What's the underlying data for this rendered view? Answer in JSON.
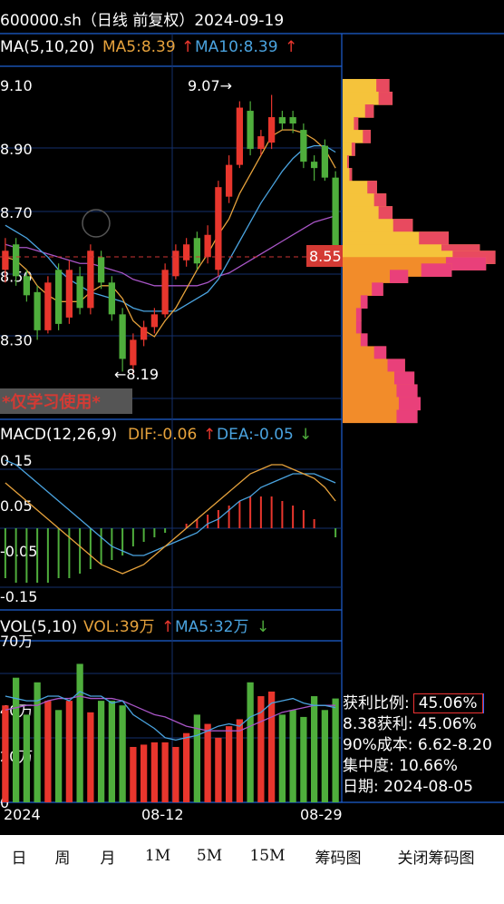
{
  "header": {
    "title": "600000.sh（日线 前复权）2024-09-19",
    "ma_label": "MA(5,10,20)",
    "ma5": "MA5:8.39",
    "ma10": "MA10:8.39",
    "arrow_up": "↑",
    "arrow_down": "↓"
  },
  "price": {
    "ticks": [
      "9.10",
      "8.90",
      "8.70",
      "8.50",
      "8.30",
      "8.10"
    ],
    "high_label": "9.07→",
    "low_label": "←8.19",
    "last_price": "8.55",
    "watermark": "*仅学习使用*"
  },
  "macd": {
    "label": "MACD(12,26,9)",
    "dif": "DIF:-0.06",
    "dea": "DEA:-0.05",
    "ticks": [
      "0.15",
      "0.05",
      "-0.05",
      "-0.15"
    ]
  },
  "vol": {
    "label": "VOL(5,10)",
    "vol": "VOL:39万",
    "ma5": "MA5:32万",
    "ticks": [
      "70万",
      "40万",
      "20万",
      "0"
    ]
  },
  "xaxis": {
    "labels": [
      "2024",
      "08-12",
      "08-29"
    ]
  },
  "chips": {
    "profit_ratio_label": "获利比例:",
    "profit_ratio": "45.06%",
    "profit_at": "8.38获利: 45.06%",
    "cost90": "90%成本: 6.62-8.20",
    "concentration": "集中度: 10.66%",
    "date": "日期: 2024-08-05"
  },
  "toolbar": {
    "day": "日",
    "week": "周",
    "month": "月",
    "m1": "1M",
    "m5": "5M",
    "m15": "15M",
    "chips": "筹码图",
    "close_chips": "关闭筹码图"
  },
  "colors": {
    "up": "#e8362d",
    "down": "#4fae3c",
    "ma5": "#e6a23c",
    "ma10": "#4aa3df",
    "ma20": "#a855c6",
    "axis": "#1e5fd1"
  },
  "chart_data": {
    "type": "candlestick",
    "candles": [
      {
        "o": 8.52,
        "c": 8.58,
        "h": 8.62,
        "l": 8.48
      },
      {
        "o": 8.6,
        "c": 8.5,
        "h": 8.62,
        "l": 8.47
      },
      {
        "o": 8.5,
        "c": 8.44,
        "h": 8.52,
        "l": 8.42
      },
      {
        "o": 8.45,
        "c": 8.33,
        "h": 8.47,
        "l": 8.3
      },
      {
        "o": 8.33,
        "c": 8.48,
        "h": 8.5,
        "l": 8.32
      },
      {
        "o": 8.52,
        "c": 8.35,
        "h": 8.54,
        "l": 8.33
      },
      {
        "o": 8.37,
        "c": 8.52,
        "h": 8.55,
        "l": 8.35
      },
      {
        "o": 8.5,
        "c": 8.4,
        "h": 8.53,
        "l": 8.38
      },
      {
        "o": 8.4,
        "c": 8.58,
        "h": 8.6,
        "l": 8.38
      },
      {
        "o": 8.56,
        "c": 8.48,
        "h": 8.58,
        "l": 8.46
      },
      {
        "o": 8.48,
        "c": 8.38,
        "h": 8.5,
        "l": 8.36
      },
      {
        "o": 8.38,
        "c": 8.24,
        "h": 8.4,
        "l": 8.2
      },
      {
        "o": 8.22,
        "c": 8.3,
        "h": 8.32,
        "l": 8.19
      },
      {
        "o": 8.3,
        "c": 8.34,
        "h": 8.36,
        "l": 8.28
      },
      {
        "o": 8.34,
        "c": 8.38,
        "h": 8.4,
        "l": 8.32
      },
      {
        "o": 8.38,
        "c": 8.52,
        "h": 8.54,
        "l": 8.37
      },
      {
        "o": 8.5,
        "c": 8.58,
        "h": 8.6,
        "l": 8.49
      },
      {
        "o": 8.55,
        "c": 8.6,
        "h": 8.62,
        "l": 8.53
      },
      {
        "o": 8.62,
        "c": 8.54,
        "h": 8.64,
        "l": 8.52
      },
      {
        "o": 8.56,
        "c": 8.63,
        "h": 8.66,
        "l": 8.54
      },
      {
        "o": 8.52,
        "c": 8.78,
        "h": 8.8,
        "l": 8.5
      },
      {
        "o": 8.75,
        "c": 8.85,
        "h": 8.88,
        "l": 8.73
      },
      {
        "o": 8.85,
        "c": 9.03,
        "h": 9.05,
        "l": 8.84
      },
      {
        "o": 9.02,
        "c": 8.9,
        "h": 9.05,
        "l": 8.88
      },
      {
        "o": 8.9,
        "c": 8.94,
        "h": 8.96,
        "l": 8.88
      },
      {
        "o": 8.92,
        "c": 9.0,
        "h": 9.07,
        "l": 8.9
      },
      {
        "o": 9.0,
        "c": 8.98,
        "h": 9.02,
        "l": 8.96
      },
      {
        "o": 9.0,
        "c": 8.98,
        "h": 9.02,
        "l": 8.95
      },
      {
        "o": 8.96,
        "c": 8.86,
        "h": 8.98,
        "l": 8.84
      },
      {
        "o": 8.86,
        "c": 8.84,
        "h": 8.88,
        "l": 8.8
      },
      {
        "o": 8.91,
        "c": 8.81,
        "h": 8.93,
        "l": 8.8
      },
      {
        "o": 8.81,
        "c": 8.58,
        "h": 8.83,
        "l": 8.55
      }
    ],
    "ma5": [
      8.56,
      8.55,
      8.52,
      8.47,
      8.44,
      8.42,
      8.42,
      8.42,
      8.45,
      8.47,
      8.47,
      8.43,
      8.36,
      8.33,
      8.31,
      8.36,
      8.4,
      8.46,
      8.52,
      8.57,
      8.63,
      8.68,
      8.76,
      8.82,
      8.88,
      8.94,
      8.96,
      8.96,
      8.95,
      8.93,
      8.9,
      8.84
    ],
    "ma10": [
      8.66,
      8.64,
      8.62,
      8.59,
      8.56,
      8.52,
      8.49,
      8.47,
      8.45,
      8.44,
      8.43,
      8.42,
      8.4,
      8.39,
      8.39,
      8.39,
      8.39,
      8.41,
      8.43,
      8.45,
      8.49,
      8.55,
      8.61,
      8.67,
      8.73,
      8.78,
      8.83,
      8.87,
      8.9,
      8.91,
      8.91,
      8.89
    ],
    "ma20": [
      8.6,
      8.59,
      8.59,
      8.58,
      8.57,
      8.56,
      8.55,
      8.54,
      8.54,
      8.53,
      8.52,
      8.51,
      8.49,
      8.48,
      8.47,
      8.47,
      8.47,
      8.47,
      8.47,
      8.48,
      8.5,
      8.51,
      8.53,
      8.55,
      8.57,
      8.59,
      8.61,
      8.63,
      8.65,
      8.67,
      8.68,
      8.69
    ],
    "macd_hist": [
      -0.11,
      -0.12,
      -0.12,
      -0.12,
      -0.12,
      -0.11,
      -0.11,
      -0.1,
      -0.09,
      -0.08,
      -0.07,
      -0.06,
      -0.04,
      -0.03,
      -0.02,
      -0.01,
      0.0,
      0.01,
      0.02,
      0.03,
      0.04,
      0.05,
      0.06,
      0.07,
      0.07,
      0.07,
      0.06,
      0.05,
      0.04,
      0.02,
      0.0,
      -0.02
    ],
    "dif": [
      0.1,
      0.08,
      0.06,
      0.04,
      0.02,
      0.0,
      -0.02,
      -0.04,
      -0.06,
      -0.08,
      -0.09,
      -0.1,
      -0.09,
      -0.08,
      -0.06,
      -0.04,
      -0.02,
      0.0,
      0.02,
      0.04,
      0.06,
      0.08,
      0.1,
      0.12,
      0.13,
      0.14,
      0.14,
      0.13,
      0.12,
      0.11,
      0.09,
      0.06
    ],
    "dea": [
      0.15,
      0.14,
      0.12,
      0.1,
      0.08,
      0.06,
      0.04,
      0.02,
      0.0,
      -0.02,
      -0.04,
      -0.05,
      -0.06,
      -0.06,
      -0.05,
      -0.04,
      -0.03,
      -0.02,
      -0.01,
      0.01,
      0.02,
      0.04,
      0.06,
      0.07,
      0.09,
      0.1,
      0.11,
      0.12,
      0.12,
      0.12,
      0.11,
      0.1
    ],
    "volume": [
      42,
      54,
      38,
      52,
      44,
      40,
      44,
      60,
      39,
      44,
      44,
      42,
      24,
      25,
      26,
      26,
      24,
      30,
      38,
      34,
      28,
      33,
      36,
      52,
      46,
      48,
      38,
      40,
      37,
      46,
      40,
      45
    ],
    "vol_ma5": [
      46,
      45,
      44,
      44,
      46,
      46,
      44,
      48,
      46,
      46,
      43,
      44,
      38,
      35,
      32,
      28,
      27,
      28,
      29,
      31,
      33,
      34,
      33,
      37,
      39,
      43,
      44,
      45,
      43,
      42,
      42,
      41
    ],
    "vol_ma10": [
      40,
      41,
      42,
      42,
      44,
      45,
      45,
      46,
      45,
      45,
      45,
      44,
      42,
      40,
      38,
      37,
      35,
      33,
      32,
      31,
      31,
      31,
      31,
      33,
      35,
      37,
      39,
      40,
      41,
      42,
      42,
      42
    ],
    "chip_profile": [
      {
        "p": 9.1,
        "w": 0.3
      },
      {
        "p": 9.06,
        "w": 0.32
      },
      {
        "p": 9.02,
        "w": 0.2
      },
      {
        "p": 8.98,
        "w": 0.1
      },
      {
        "p": 8.94,
        "w": 0.18
      },
      {
        "p": 8.9,
        "w": 0.08
      },
      {
        "p": 8.86,
        "w": 0.04
      },
      {
        "p": 8.82,
        "w": 0.06
      },
      {
        "p": 8.78,
        "w": 0.22
      },
      {
        "p": 8.74,
        "w": 0.28
      },
      {
        "p": 8.7,
        "w": 0.32
      },
      {
        "p": 8.66,
        "w": 0.45
      },
      {
        "p": 8.62,
        "w": 0.68
      },
      {
        "p": 8.58,
        "w": 0.88
      },
      {
        "p": 8.56,
        "w": 0.98
      },
      {
        "p": 8.54,
        "w": 0.92
      },
      {
        "p": 8.52,
        "w": 0.7
      },
      {
        "p": 8.5,
        "w": 0.42
      },
      {
        "p": 8.46,
        "w": 0.26
      },
      {
        "p": 8.42,
        "w": 0.16
      },
      {
        "p": 8.38,
        "w": 0.12
      },
      {
        "p": 8.34,
        "w": 0.12
      },
      {
        "p": 8.3,
        "w": 0.16
      },
      {
        "p": 8.26,
        "w": 0.28
      },
      {
        "p": 8.22,
        "w": 0.4
      },
      {
        "p": 8.18,
        "w": 0.46
      },
      {
        "p": 8.14,
        "w": 0.48
      },
      {
        "p": 8.1,
        "w": 0.5
      },
      {
        "p": 8.06,
        "w": 0.48
      }
    ],
    "x_labels": [
      "2024",
      "08-12",
      "08-29"
    ],
    "price_range": [
      8.05,
      9.18
    ],
    "macd_range": [
      -0.18,
      0.18
    ],
    "vol_range": [
      0,
      70
    ]
  }
}
